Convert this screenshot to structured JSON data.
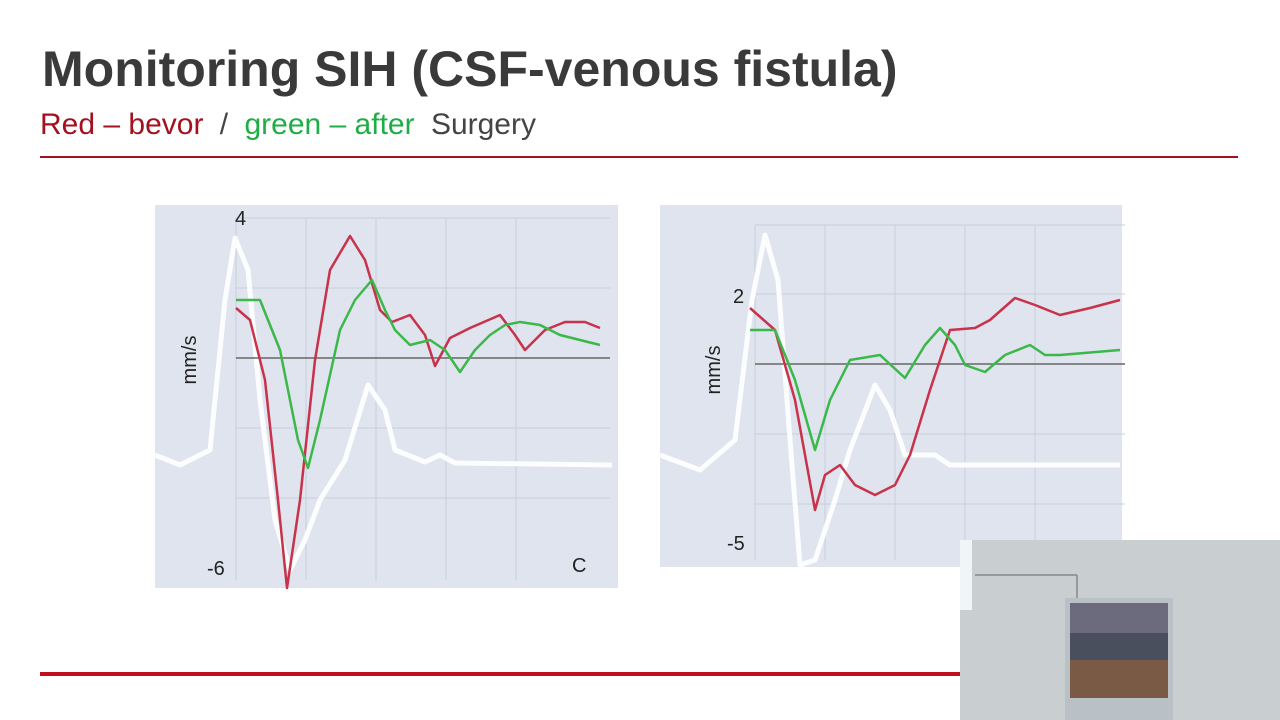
{
  "header": {
    "title": "Monitoring SIH (CSF-venous fistula)",
    "subtitle": {
      "red_part": "Red – bevor",
      "separator": "/",
      "green_part": "green – after",
      "rest": "Surgery"
    }
  },
  "figures": [
    {
      "unit_label": "mm/s",
      "top_label": "4",
      "bottom_label": "-6",
      "corner_label": "C"
    },
    {
      "unit_label": "mm/s",
      "top_label": "2",
      "bottom_label": "-5"
    }
  ]
}
